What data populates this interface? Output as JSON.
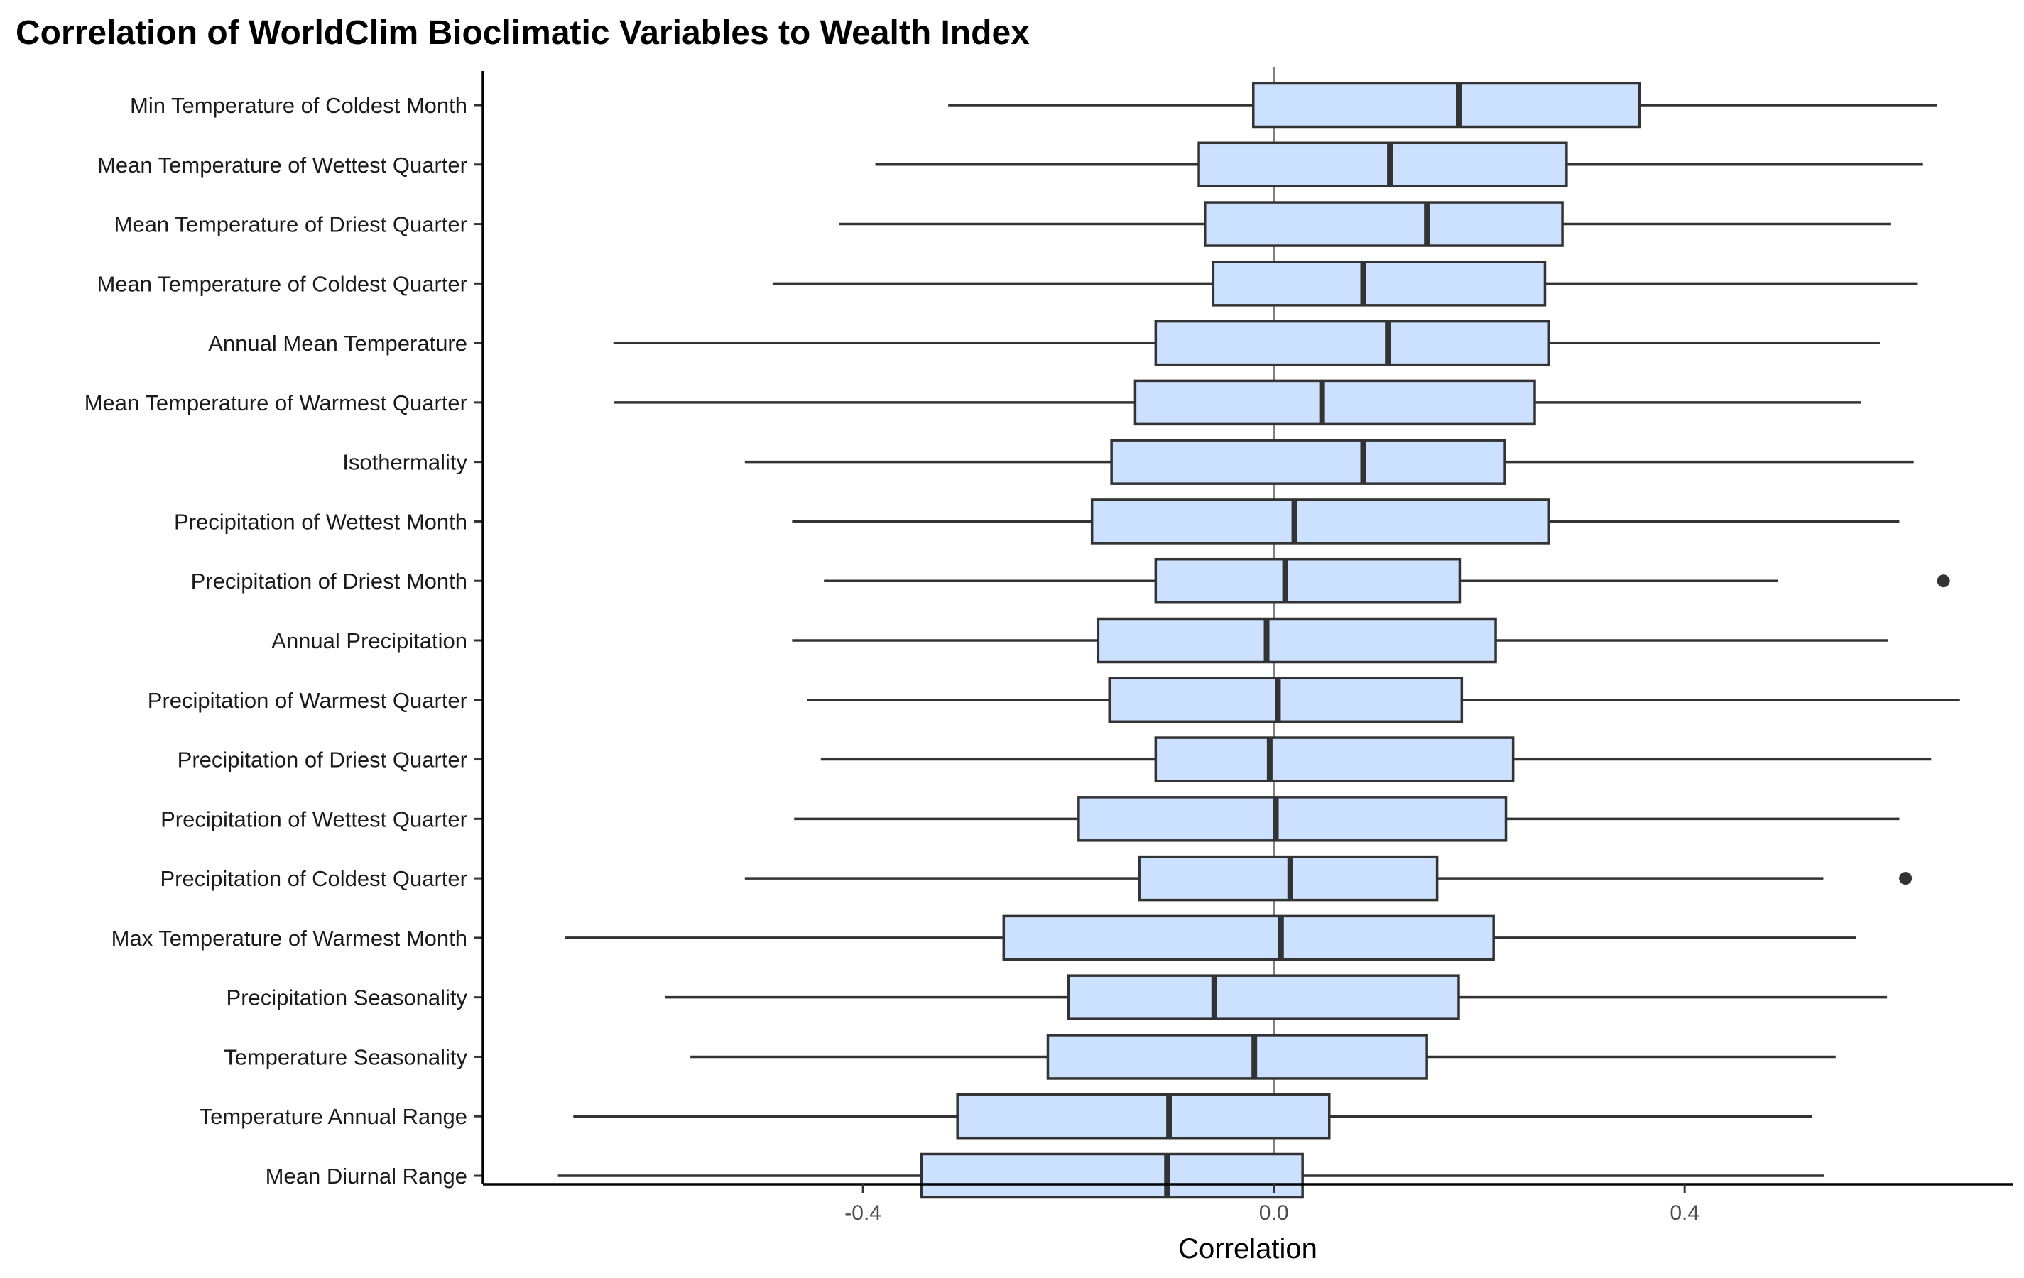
{
  "chart_data": {
    "type": "boxplot",
    "orientation": "horizontal",
    "title": "Correlation of WorldClim Bioclimatic Variables to Wealth Index",
    "xlabel": "Correlation",
    "ylabel": "",
    "xlim": [
      -0.77,
      0.72
    ],
    "xticks": [
      -0.4,
      0.0,
      0.4
    ],
    "xtick_labels": [
      "-0.4",
      "0.0",
      "0.4"
    ],
    "reference_line_x": 0.0,
    "grid": false,
    "legend": "none",
    "colors": {
      "box_fill": "#cce0ff",
      "box_stroke": "#333333",
      "ref_line": "#808080"
    },
    "series": [
      {
        "name": "Min Temperature of Coldest Month",
        "whisker_low": -0.317,
        "q1": -0.02,
        "median": 0.18,
        "q3": 0.356,
        "whisker_high": 0.646,
        "outliers": []
      },
      {
        "name": "Mean Temperature of Wettest Quarter",
        "whisker_low": -0.388,
        "q1": -0.073,
        "median": 0.113,
        "q3": 0.285,
        "whisker_high": 0.632,
        "outliers": []
      },
      {
        "name": "Mean Temperature of Driest Quarter",
        "whisker_low": -0.423,
        "q1": -0.067,
        "median": 0.149,
        "q3": 0.281,
        "whisker_high": 0.601,
        "outliers": []
      },
      {
        "name": "Mean Temperature of Coldest Quarter",
        "whisker_low": -0.488,
        "q1": -0.059,
        "median": 0.087,
        "q3": 0.264,
        "whisker_high": 0.627,
        "outliers": []
      },
      {
        "name": "Annual Mean Temperature",
        "whisker_low": -0.643,
        "q1": -0.115,
        "median": 0.111,
        "q3": 0.268,
        "whisker_high": 0.59,
        "outliers": []
      },
      {
        "name": "Mean Temperature of Warmest Quarter",
        "whisker_low": -0.642,
        "q1": -0.135,
        "median": 0.047,
        "q3": 0.254,
        "whisker_high": 0.572,
        "outliers": []
      },
      {
        "name": "Isothermality",
        "whisker_low": -0.515,
        "q1": -0.158,
        "median": 0.087,
        "q3": 0.225,
        "whisker_high": 0.623,
        "outliers": []
      },
      {
        "name": "Precipitation of Wettest Month",
        "whisker_low": -0.469,
        "q1": -0.177,
        "median": 0.02,
        "q3": 0.268,
        "whisker_high": 0.609,
        "outliers": []
      },
      {
        "name": "Precipitation of Driest Month",
        "whisker_low": -0.438,
        "q1": -0.115,
        "median": 0.011,
        "q3": 0.181,
        "whisker_high": 0.491,
        "outliers": [
          0.652
        ]
      },
      {
        "name": "Annual Precipitation",
        "whisker_low": -0.469,
        "q1": -0.171,
        "median": -0.007,
        "q3": 0.216,
        "whisker_high": 0.598,
        "outliers": []
      },
      {
        "name": "Precipitation of Warmest Quarter",
        "whisker_low": -0.454,
        "q1": -0.16,
        "median": 0.004,
        "q3": 0.183,
        "whisker_high": 0.668,
        "outliers": []
      },
      {
        "name": "Precipitation of Driest Quarter",
        "whisker_low": -0.441,
        "q1": -0.115,
        "median": -0.004,
        "q3": 0.233,
        "whisker_high": 0.64,
        "outliers": []
      },
      {
        "name": "Precipitation of Wettest Quarter",
        "whisker_low": -0.467,
        "q1": -0.19,
        "median": 0.002,
        "q3": 0.226,
        "whisker_high": 0.609,
        "outliers": []
      },
      {
        "name": "Precipitation of Coldest Quarter",
        "whisker_low": -0.515,
        "q1": -0.131,
        "median": 0.016,
        "q3": 0.159,
        "whisker_high": 0.535,
        "outliers": [
          0.615
        ]
      },
      {
        "name": "Max Temperature of Warmest Month",
        "whisker_low": -0.69,
        "q1": -0.263,
        "median": 0.007,
        "q3": 0.214,
        "whisker_high": 0.567,
        "outliers": []
      },
      {
        "name": "Precipitation Seasonality",
        "whisker_low": -0.593,
        "q1": -0.2,
        "median": -0.058,
        "q3": 0.18,
        "whisker_high": 0.597,
        "outliers": []
      },
      {
        "name": "Temperature Seasonality",
        "whisker_low": -0.568,
        "q1": -0.22,
        "median": -0.019,
        "q3": 0.149,
        "whisker_high": 0.547,
        "outliers": []
      },
      {
        "name": "Temperature Annual Range",
        "whisker_low": -0.682,
        "q1": -0.308,
        "median": -0.102,
        "q3": 0.054,
        "whisker_high": 0.524,
        "outliers": []
      },
      {
        "name": "Mean Diurnal Range",
        "whisker_low": -0.697,
        "q1": -0.343,
        "median": -0.104,
        "q3": 0.028,
        "whisker_high": 0.536,
        "outliers": []
      }
    ]
  }
}
